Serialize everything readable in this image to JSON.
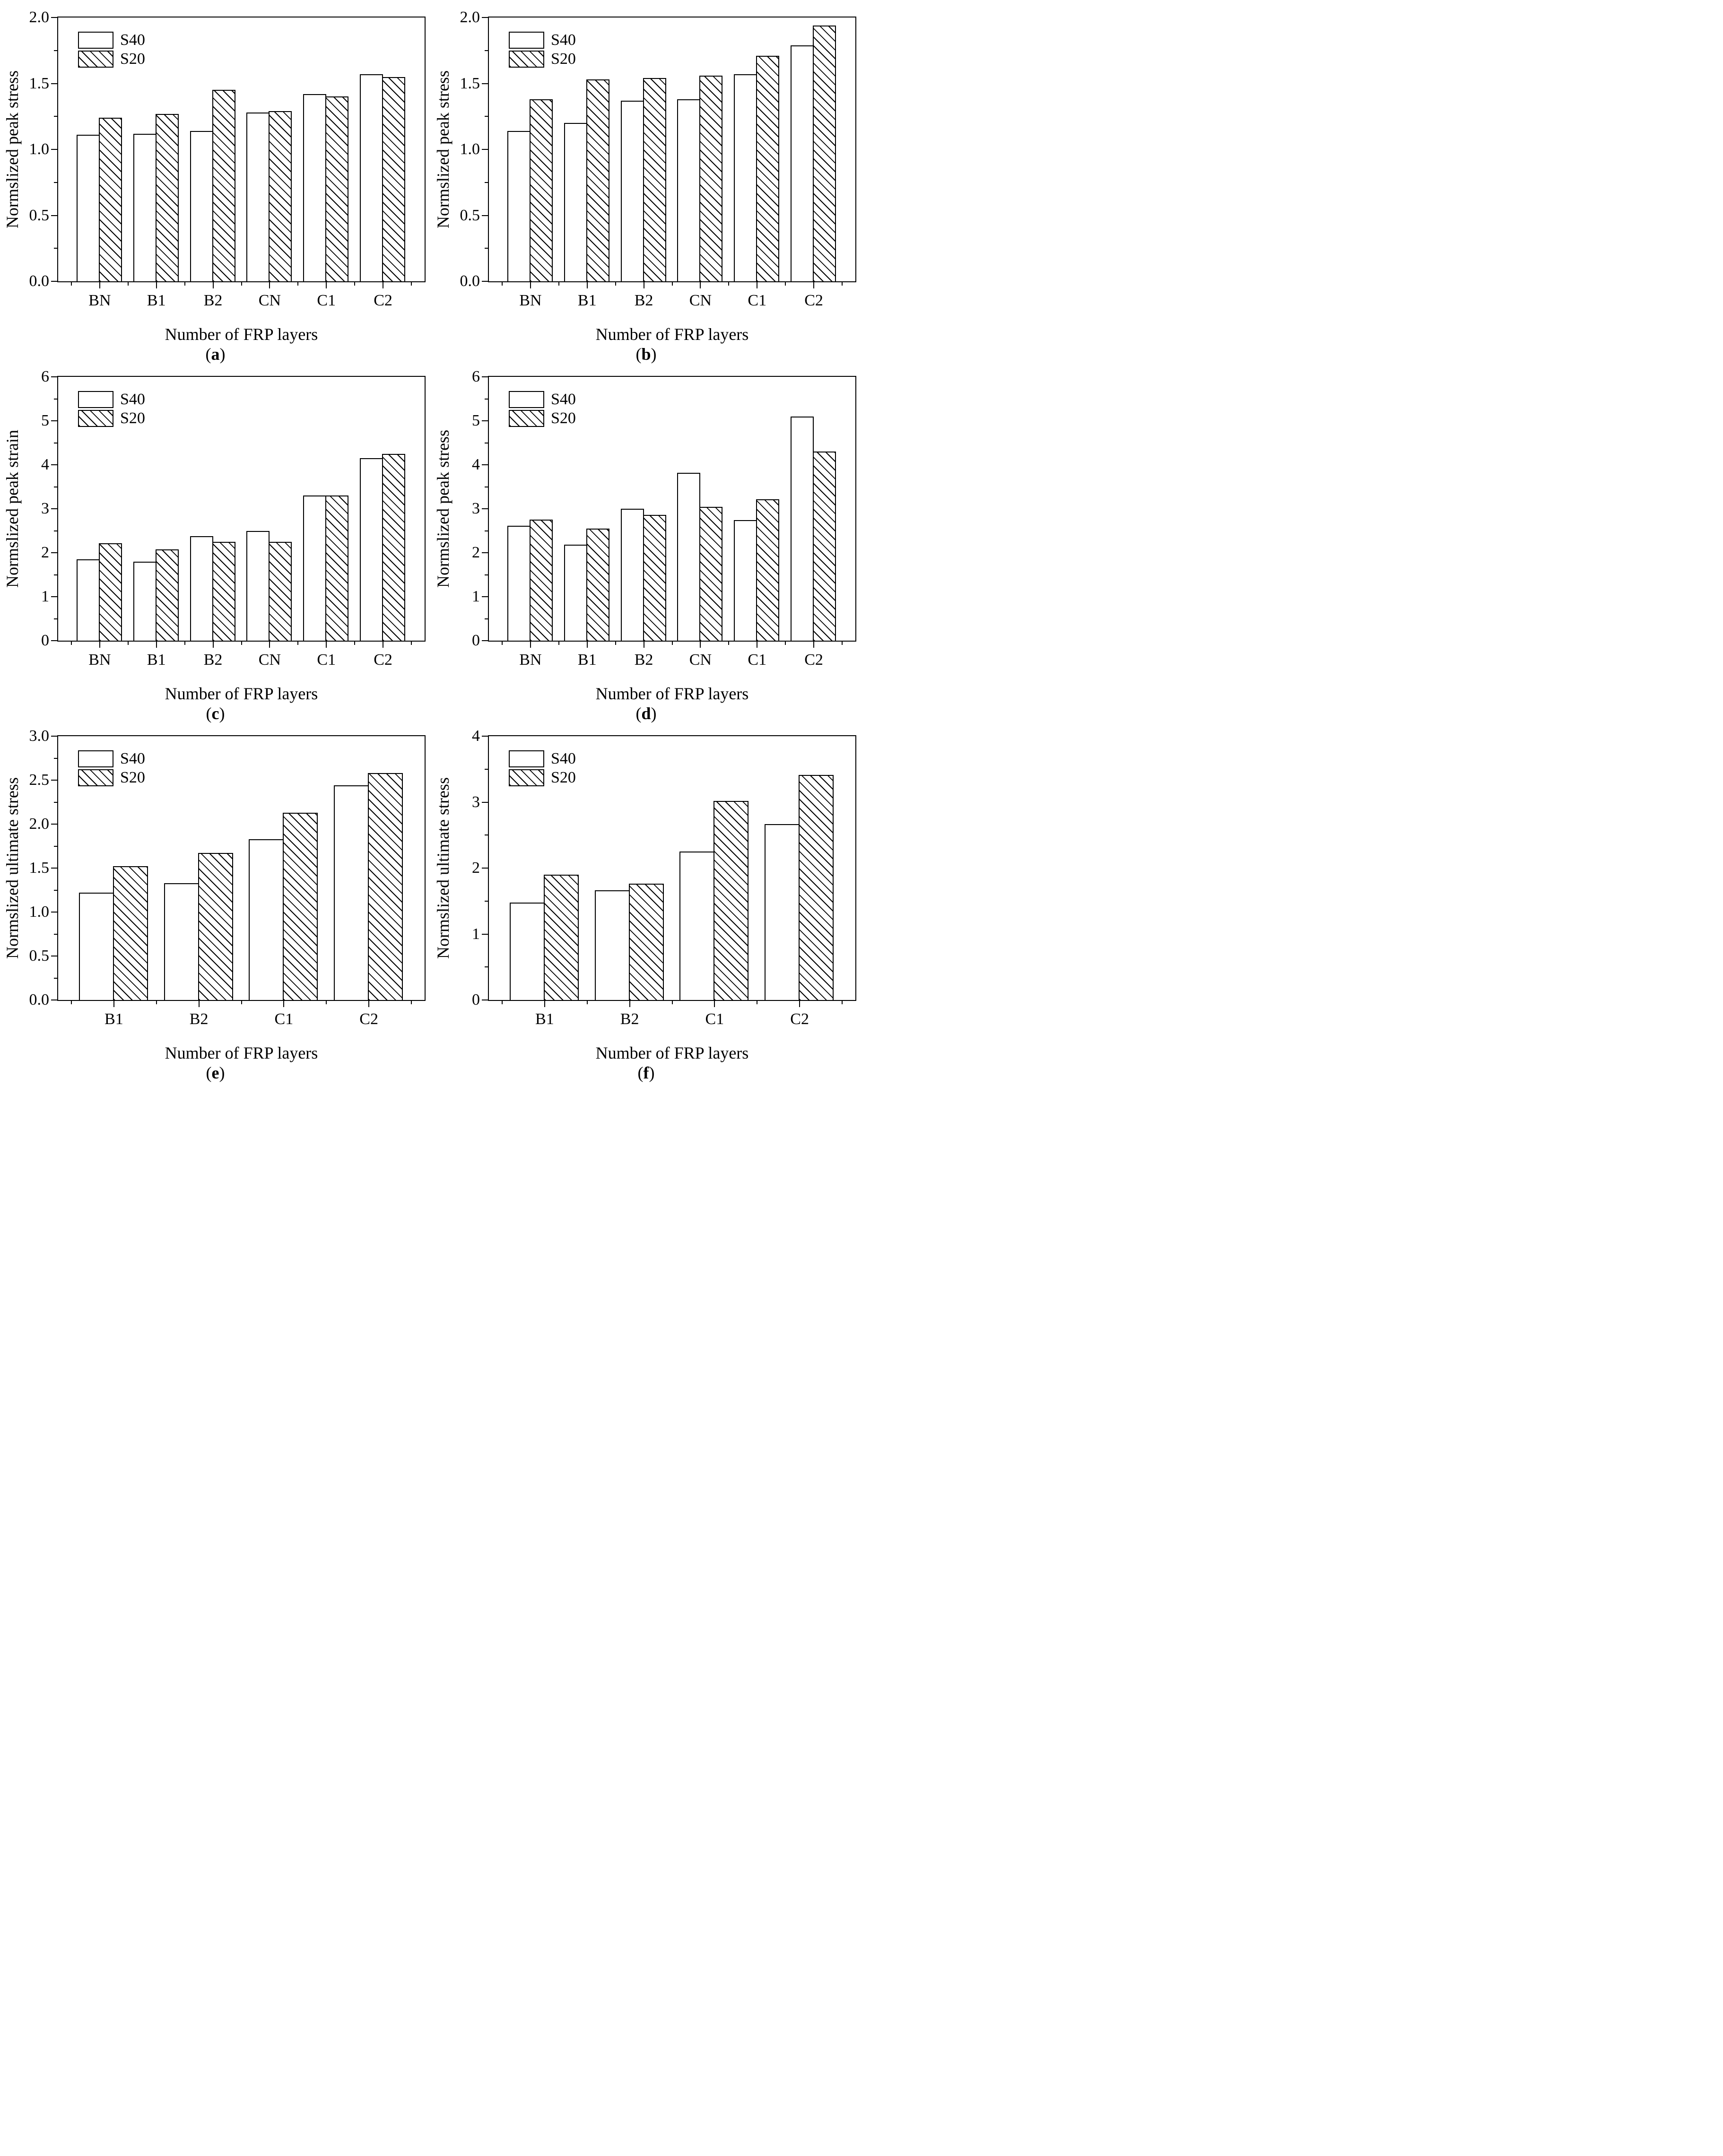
{
  "legend": {
    "items": [
      {
        "label": "S40",
        "style": "open"
      },
      {
        "label": "S20",
        "style": "hatched"
      }
    ]
  },
  "chart_data": [
    {
      "panel": "a",
      "type": "bar",
      "ylabel": "Normslized peak stress",
      "xlabel": "Number of FRP layers",
      "ylim": [
        0,
        2.0
      ],
      "ytick_labels": [
        "0.0",
        "0.5",
        "1.0",
        "1.5",
        "2.0"
      ],
      "grid": false,
      "legend_position": "top-left",
      "categories": [
        "BN",
        "B1",
        "B2",
        "CN",
        "C1",
        "C2"
      ],
      "series": [
        {
          "name": "S40",
          "values": [
            1.11,
            1.12,
            1.14,
            1.28,
            1.42,
            1.57
          ]
        },
        {
          "name": "S20",
          "values": [
            1.24,
            1.27,
            1.45,
            1.29,
            1.4,
            1.55
          ]
        }
      ]
    },
    {
      "panel": "b",
      "type": "bar",
      "ylabel": "Normslized peak stress",
      "xlabel": "Number of FRP layers",
      "ylim": [
        0,
        2.0
      ],
      "ytick_labels": [
        "0.0",
        "0.5",
        "1.0",
        "1.5",
        "2.0"
      ],
      "grid": false,
      "legend_position": "top-left",
      "categories": [
        "BN",
        "B1",
        "B2",
        "CN",
        "C1",
        "C2"
      ],
      "series": [
        {
          "name": "S40",
          "values": [
            1.14,
            1.2,
            1.37,
            1.38,
            1.57,
            1.79
          ]
        },
        {
          "name": "S20",
          "values": [
            1.38,
            1.53,
            1.54,
            1.56,
            1.71,
            1.94
          ]
        }
      ]
    },
    {
      "panel": "c",
      "type": "bar",
      "ylabel": "Normslized peak strain",
      "xlabel": "Number of FRP layers",
      "ylim": [
        0,
        6
      ],
      "ytick_labels": [
        "0",
        "1",
        "2",
        "3",
        "4",
        "5",
        "6"
      ],
      "grid": false,
      "legend_position": "top-left",
      "categories": [
        "BN",
        "B1",
        "B2",
        "CN",
        "C1",
        "C2"
      ],
      "series": [
        {
          "name": "S40",
          "values": [
            1.85,
            1.8,
            2.38,
            2.5,
            3.3,
            4.15
          ]
        },
        {
          "name": "S20",
          "values": [
            2.22,
            2.07,
            2.25,
            2.25,
            3.3,
            4.25
          ]
        }
      ]
    },
    {
      "panel": "d",
      "type": "bar",
      "ylabel": "Normslized peak stress",
      "xlabel": "Number of FRP layers",
      "ylim": [
        0,
        6
      ],
      "ytick_labels": [
        "0",
        "1",
        "2",
        "3",
        "4",
        "5",
        "6"
      ],
      "grid": false,
      "legend_position": "top-left",
      "categories": [
        "BN",
        "B1",
        "B2",
        "CN",
        "C1",
        "C2"
      ],
      "series": [
        {
          "name": "S40",
          "values": [
            2.61,
            2.18,
            3.0,
            3.82,
            2.74,
            5.1
          ]
        },
        {
          "name": "S20",
          "values": [
            2.75,
            2.55,
            2.86,
            3.04,
            3.21,
            4.3
          ]
        }
      ]
    },
    {
      "panel": "e",
      "type": "bar",
      "ylabel": "Normslized ultimate stress",
      "xlabel": "Number of FRP layers",
      "ylim": [
        0,
        3.0
      ],
      "ytick_labels": [
        "0.0",
        "0.5",
        "1.0",
        "1.5",
        "2.0",
        "2.5",
        "3.0"
      ],
      "grid": false,
      "legend_position": "top-left",
      "categories": [
        "B1",
        "B2",
        "C1",
        "C2"
      ],
      "series": [
        {
          "name": "S40",
          "values": [
            1.22,
            1.33,
            1.83,
            2.44
          ]
        },
        {
          "name": "S20",
          "values": [
            1.52,
            1.67,
            2.13,
            2.58
          ]
        }
      ]
    },
    {
      "panel": "f",
      "type": "bar",
      "ylabel": "Normslized ultimate stress",
      "xlabel": "Number of FRP layers",
      "ylim": [
        0,
        4
      ],
      "ytick_labels": [
        "0",
        "1",
        "2",
        "3",
        "4"
      ],
      "grid": false,
      "legend_position": "top-left",
      "categories": [
        "B1",
        "B2",
        "C1",
        "C2"
      ],
      "series": [
        {
          "name": "S40",
          "values": [
            1.48,
            1.66,
            2.25,
            2.67
          ]
        },
        {
          "name": "S20",
          "values": [
            1.9,
            1.76,
            3.02,
            3.41
          ]
        }
      ]
    }
  ]
}
